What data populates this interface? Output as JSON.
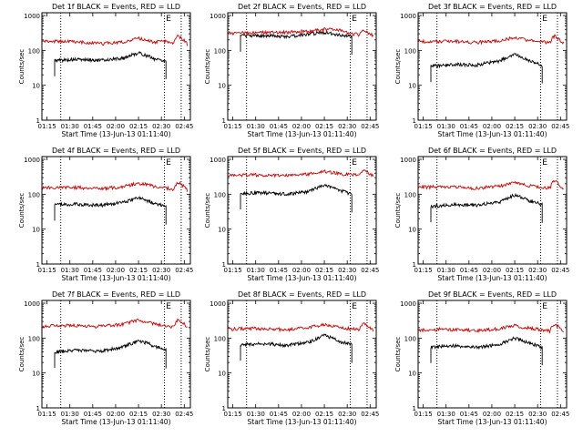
{
  "figure": {
    "xlabel": "Start Time (13-Jun-13 01:11:40)",
    "ylabel": "Counts/sec",
    "x_ticks": [
      "01:15",
      "01:30",
      "01:45",
      "02:00",
      "02:15",
      "02:30",
      "02:45"
    ],
    "y_ticks": [
      "1",
      "10",
      "100",
      "1000"
    ],
    "colors": {
      "events": "#000000",
      "lld": "#cc0000",
      "axes": "#000000"
    }
  },
  "chart_data": [
    {
      "type": "line",
      "title": "Det 1f BLACK = Events, RED = LLD",
      "x_range": [
        "01:11:40",
        "02:49:00"
      ],
      "y_range": [
        1,
        1200
      ],
      "y_scale": "log",
      "vlines": [
        "01:24",
        "02:32",
        "02:43"
      ],
      "marker": "E",
      "marker_x": "02:33",
      "series": [
        {
          "name": "Events",
          "start": "01:20",
          "end": "02:33",
          "x": [
            "01:20",
            "01:35",
            "01:50",
            "02:05",
            "02:15",
            "02:25",
            "02:33"
          ],
          "y": [
            52,
            55,
            52,
            60,
            85,
            58,
            50
          ]
        },
        {
          "name": "LLD",
          "start": "01:12",
          "end": "02:47",
          "x": [
            "01:12",
            "01:30",
            "01:50",
            "02:05",
            "02:15",
            "02:25",
            "02:33",
            "02:38",
            "02:41",
            "02:47"
          ],
          "y": [
            185,
            180,
            155,
            175,
            220,
            175,
            180,
            155,
            270,
            150
          ]
        }
      ]
    },
    {
      "type": "line",
      "title": "Det 2f BLACK = Events, RED = LLD",
      "x_range": [
        "01:11:40",
        "02:49:00"
      ],
      "y_range": [
        1,
        1200
      ],
      "y_scale": "log",
      "vlines": [
        "01:24",
        "02:32",
        "02:43"
      ],
      "marker": "E",
      "marker_x": "02:33",
      "series": [
        {
          "name": "Events",
          "start": "01:20",
          "end": "02:33",
          "x": [
            "01:20",
            "01:35",
            "01:50",
            "02:05",
            "02:15",
            "02:25",
            "02:33"
          ],
          "y": [
            260,
            265,
            250,
            290,
            330,
            280,
            250
          ]
        },
        {
          "name": "LLD",
          "start": "01:12",
          "end": "02:47",
          "x": [
            "01:12",
            "01:30",
            "01:50",
            "02:05",
            "02:15",
            "02:25",
            "02:33",
            "02:38",
            "02:41",
            "02:47"
          ],
          "y": [
            310,
            320,
            330,
            360,
            400,
            380,
            300,
            280,
            380,
            260
          ]
        }
      ]
    },
    {
      "type": "line",
      "title": "Det 3f BLACK = Events, RED = LLD",
      "x_range": [
        "01:11:40",
        "02:49:00"
      ],
      "y_range": [
        1,
        1200
      ],
      "y_scale": "log",
      "vlines": [
        "01:24",
        "02:32",
        "02:43"
      ],
      "marker": "E",
      "marker_x": "02:33",
      "series": [
        {
          "name": "Events",
          "start": "01:20",
          "end": "02:33",
          "x": [
            "01:20",
            "01:35",
            "01:50",
            "02:05",
            "02:15",
            "02:25",
            "02:33"
          ],
          "y": [
            35,
            40,
            38,
            50,
            75,
            50,
            38
          ]
        },
        {
          "name": "LLD",
          "start": "01:12",
          "end": "02:47",
          "x": [
            "01:12",
            "01:30",
            "01:50",
            "02:05",
            "02:15",
            "02:25",
            "02:33",
            "02:38",
            "02:41",
            "02:47"
          ],
          "y": [
            180,
            185,
            170,
            190,
            230,
            190,
            175,
            170,
            260,
            160
          ]
        }
      ]
    },
    {
      "type": "line",
      "title": "Det 4f BLACK = Events, RED = LLD",
      "x_range": [
        "01:11:40",
        "02:49:00"
      ],
      "y_range": [
        1,
        1200
      ],
      "y_scale": "log",
      "vlines": [
        "01:24",
        "02:32",
        "02:43"
      ],
      "marker": "E",
      "marker_x": "02:33",
      "series": [
        {
          "name": "Events",
          "start": "01:20",
          "end": "02:33",
          "x": [
            "01:20",
            "01:35",
            "01:50",
            "02:05",
            "02:15",
            "02:25",
            "02:33"
          ],
          "y": [
            50,
            52,
            48,
            58,
            80,
            55,
            45
          ]
        },
        {
          "name": "LLD",
          "start": "01:12",
          "end": "02:47",
          "x": [
            "01:12",
            "01:30",
            "01:50",
            "02:05",
            "02:15",
            "02:25",
            "02:33",
            "02:38",
            "02:41",
            "02:47"
          ],
          "y": [
            150,
            160,
            145,
            165,
            210,
            170,
            150,
            140,
            230,
            130
          ]
        }
      ]
    },
    {
      "type": "line",
      "title": "Det 5f BLACK = Events, RED = LLD",
      "x_range": [
        "01:11:40",
        "02:49:00"
      ],
      "y_range": [
        1,
        1200
      ],
      "y_scale": "log",
      "vlines": [
        "01:24",
        "02:32",
        "02:43"
      ],
      "marker": "E",
      "marker_x": "02:33",
      "series": [
        {
          "name": "Events",
          "start": "01:20",
          "end": "02:33",
          "x": [
            "01:20",
            "01:35",
            "01:50",
            "02:05",
            "02:15",
            "02:25",
            "02:33"
          ],
          "y": [
            105,
            110,
            100,
            120,
            180,
            130,
            100
          ]
        },
        {
          "name": "LLD",
          "start": "01:12",
          "end": "02:47",
          "x": [
            "01:12",
            "01:30",
            "01:50",
            "02:05",
            "02:15",
            "02:25",
            "02:33",
            "02:38",
            "02:41",
            "02:47"
          ],
          "y": [
            350,
            360,
            340,
            380,
            450,
            390,
            360,
            350,
            480,
            330
          ]
        }
      ]
    },
    {
      "type": "line",
      "title": "Det 6f BLACK = Events, RED = LLD",
      "x_range": [
        "01:11:40",
        "02:49:00"
      ],
      "y_range": [
        1,
        1200
      ],
      "y_scale": "log",
      "vlines": [
        "01:24",
        "02:32",
        "02:43"
      ],
      "marker": "E",
      "marker_x": "02:33",
      "series": [
        {
          "name": "Events",
          "start": "01:20",
          "end": "02:33",
          "x": [
            "01:20",
            "01:35",
            "01:50",
            "02:05",
            "02:15",
            "02:25",
            "02:33"
          ],
          "y": [
            45,
            50,
            48,
            60,
            95,
            65,
            50
          ]
        },
        {
          "name": "LLD",
          "start": "01:12",
          "end": "02:47",
          "x": [
            "01:12",
            "01:30",
            "01:50",
            "02:05",
            "02:15",
            "02:25",
            "02:33",
            "02:38",
            "02:41",
            "02:47"
          ],
          "y": [
            160,
            165,
            150,
            170,
            215,
            175,
            160,
            150,
            250,
            140
          ]
        }
      ]
    },
    {
      "type": "line",
      "title": "Det 7f BLACK = Events, RED = LLD",
      "x_range": [
        "01:11:40",
        "02:49:00"
      ],
      "y_range": [
        1,
        1200
      ],
      "y_scale": "log",
      "vlines": [
        "01:24",
        "02:32",
        "02:43"
      ],
      "marker": "E",
      "marker_x": "02:33",
      "series": [
        {
          "name": "Events",
          "start": "01:20",
          "end": "02:33",
          "x": [
            "01:20",
            "01:35",
            "01:50",
            "02:05",
            "02:15",
            "02:25",
            "02:33"
          ],
          "y": [
            40,
            45,
            42,
            55,
            85,
            60,
            45
          ]
        },
        {
          "name": "LLD",
          "start": "01:12",
          "end": "02:47",
          "x": [
            "01:12",
            "01:30",
            "01:50",
            "02:05",
            "02:15",
            "02:25",
            "02:33",
            "02:38",
            "02:41",
            "02:47"
          ],
          "y": [
            220,
            230,
            215,
            250,
            330,
            260,
            220,
            210,
            350,
            200
          ]
        }
      ]
    },
    {
      "type": "line",
      "title": "Det 8f BLACK = Events, RED = LLD",
      "x_range": [
        "01:11:40",
        "02:49:00"
      ],
      "y_range": [
        1,
        1200
      ],
      "y_scale": "log",
      "vlines": [
        "01:24",
        "02:32",
        "02:43"
      ],
      "marker": "E",
      "marker_x": "02:33",
      "series": [
        {
          "name": "Events",
          "start": "01:20",
          "end": "02:33",
          "x": [
            "01:20",
            "01:35",
            "01:50",
            "02:05",
            "02:15",
            "02:25",
            "02:33"
          ],
          "y": [
            65,
            70,
            62,
            75,
            120,
            80,
            65
          ]
        },
        {
          "name": "LLD",
          "start": "01:12",
          "end": "02:47",
          "x": [
            "01:12",
            "01:30",
            "01:50",
            "02:05",
            "02:15",
            "02:25",
            "02:33",
            "02:38",
            "02:41",
            "02:47"
          ],
          "y": [
            180,
            190,
            175,
            200,
            250,
            205,
            185,
            175,
            270,
            165
          ]
        }
      ]
    },
    {
      "type": "line",
      "title": "Det 9f BLACK = Events, RED = LLD",
      "x_range": [
        "01:11:40",
        "02:49:00"
      ],
      "y_range": [
        1,
        1200
      ],
      "y_scale": "log",
      "vlines": [
        "01:24",
        "02:32",
        "02:43"
      ],
      "marker": "E",
      "marker_x": "02:33",
      "series": [
        {
          "name": "Events",
          "start": "01:20",
          "end": "02:33",
          "x": [
            "01:20",
            "01:35",
            "01:50",
            "02:05",
            "02:15",
            "02:25",
            "02:33"
          ],
          "y": [
            55,
            60,
            55,
            65,
            100,
            70,
            55
          ]
        },
        {
          "name": "LLD",
          "start": "01:12",
          "end": "02:47",
          "x": [
            "01:12",
            "01:30",
            "01:50",
            "02:05",
            "02:15",
            "02:25",
            "02:33",
            "02:38",
            "02:41",
            "02:47"
          ],
          "y": [
            170,
            180,
            165,
            185,
            230,
            190,
            170,
            160,
            260,
            150
          ]
        }
      ]
    }
  ]
}
